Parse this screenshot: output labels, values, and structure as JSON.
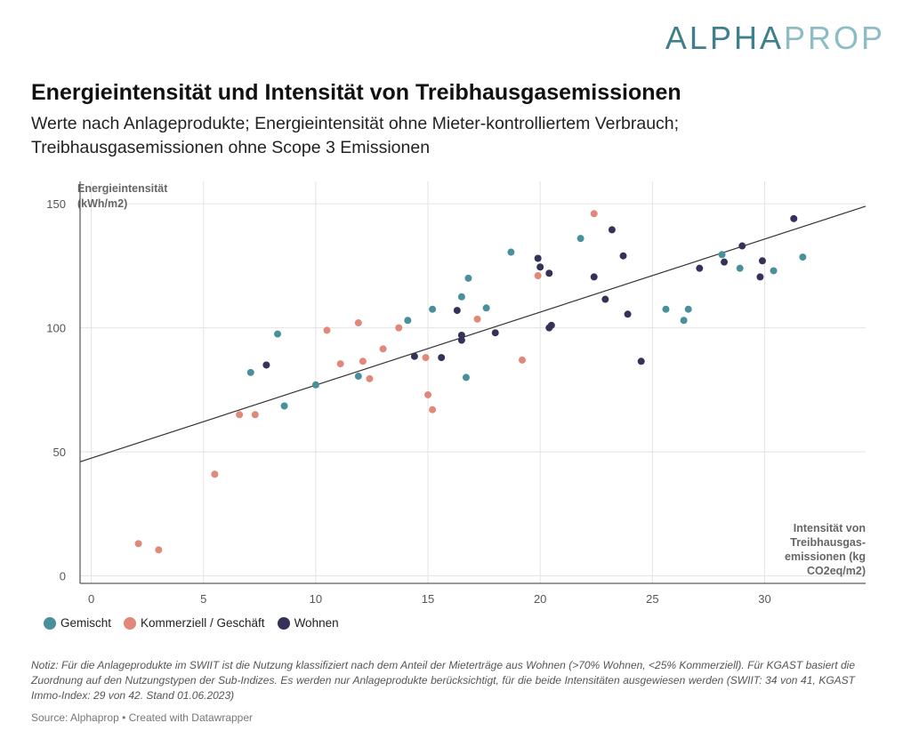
{
  "logo": {
    "part1": "ALPHA",
    "part2": "PROP"
  },
  "header": {
    "title": "Energieintensität und Intensität von Treibhausgasemissionen",
    "subtitle": "Werte nach Anlageprodukte; Energieintensität ohne Mieter-kontrolliertem Verbrauch; Treibhausgasemissionen ohne Scope 3 Emissionen"
  },
  "footer": {
    "note": "Notiz: Für die Anlageprodukte im SWIIT ist die Nutzung klassifiziert nach dem Anteil der Mieterträge aus Wohnen (>70% Wohnen, <25% Kommerziell). Für KGAST basiert die Zuordnung auf den Nutzungstypen der Sub-Indizes. Es werden nur Anlageprodukte berücksichtigt, für die beide Intensitäten ausgewiesen werden (SWIIT:  34 von 41, KGAST Immo-Index: 29 von 42. Stand 01.06.2023)",
    "source": "Source: Alphaprop • Created with Datawrapper"
  },
  "chart_data": {
    "type": "scatter",
    "ylabel": [
      "Energieintensität",
      "(kWh/m2)"
    ],
    "xlabel": [
      "Intensität von",
      "Treibhausgas-",
      "emissionen (kg",
      "CO2eq/m2)"
    ],
    "xlim": [
      -0.5,
      34.5
    ],
    "ylim": [
      -3,
      159
    ],
    "xticks": [
      0,
      5,
      10,
      15,
      20,
      25,
      30
    ],
    "yticks": [
      0,
      50,
      100,
      150
    ],
    "grid": true,
    "legend_position": "bottom-left",
    "trendline": {
      "x": [
        -0.5,
        34.5
      ],
      "y": [
        46,
        149
      ]
    },
    "series": [
      {
        "name": "Gemischt",
        "color": "#4a8f9c",
        "points": [
          [
            7.1,
            82
          ],
          [
            8.3,
            97.5
          ],
          [
            8.6,
            68.5
          ],
          [
            10,
            77
          ],
          [
            11.9,
            80.5
          ],
          [
            14.1,
            103
          ],
          [
            15.2,
            107.5
          ],
          [
            16.5,
            112.5
          ],
          [
            16.8,
            120
          ],
          [
            16.7,
            80
          ],
          [
            17.6,
            108
          ],
          [
            18.7,
            130.5
          ],
          [
            21.8,
            136
          ],
          [
            25.6,
            107.5
          ],
          [
            26.4,
            103
          ],
          [
            26.6,
            107.5
          ],
          [
            28.1,
            129.5
          ],
          [
            28.9,
            124
          ],
          [
            30.4,
            123
          ],
          [
            31.7,
            128.5
          ]
        ]
      },
      {
        "name": "Kommerziell / Geschäft",
        "color": "#e0897a",
        "points": [
          [
            2.1,
            13
          ],
          [
            3,
            10.5
          ],
          [
            5.5,
            41
          ],
          [
            6.6,
            65
          ],
          [
            7.3,
            65
          ],
          [
            10.5,
            99
          ],
          [
            11.1,
            85.5
          ],
          [
            11.9,
            102
          ],
          [
            12.1,
            86.5
          ],
          [
            12.4,
            79.5
          ],
          [
            13,
            91.5
          ],
          [
            13.7,
            100
          ],
          [
            14.9,
            88
          ],
          [
            15,
            73
          ],
          [
            15.2,
            67
          ],
          [
            17.2,
            103.5
          ],
          [
            19.2,
            87
          ],
          [
            19.9,
            121
          ],
          [
            22.4,
            146
          ]
        ]
      },
      {
        "name": "Wohnen",
        "color": "#35325a",
        "points": [
          [
            7.8,
            85
          ],
          [
            14.4,
            88.5
          ],
          [
            15.6,
            88
          ],
          [
            16.3,
            107
          ],
          [
            16.5,
            97
          ],
          [
            16.5,
            95
          ],
          [
            18,
            98
          ],
          [
            19.9,
            128
          ],
          [
            20,
            124.5
          ],
          [
            20.4,
            122
          ],
          [
            20.4,
            100
          ],
          [
            20.5,
            101
          ],
          [
            22.4,
            120.5
          ],
          [
            22.9,
            111.5
          ],
          [
            23.2,
            139.5
          ],
          [
            23.7,
            129
          ],
          [
            23.9,
            105.5
          ],
          [
            24.5,
            86.5
          ],
          [
            27.1,
            124
          ],
          [
            28.2,
            126.5
          ],
          [
            29,
            133
          ],
          [
            29.8,
            120.5
          ],
          [
            29.9,
            127
          ],
          [
            31.3,
            144
          ]
        ]
      }
    ]
  }
}
